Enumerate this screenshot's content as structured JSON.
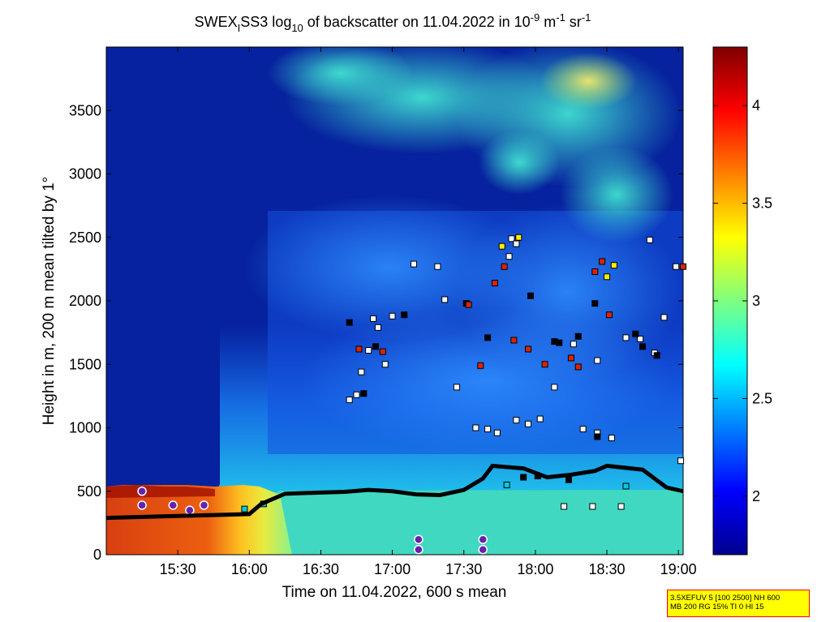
{
  "chart_data": {
    "type": "heatmap",
    "title": {
      "pre": "SWEX",
      "sub1": "I",
      "mid": "SS3 log",
      "sub2": "10",
      "post": " of backscatter on 11.04.2022 in 10",
      "sup1": "-9",
      "post2": " m",
      "sup2": "-1",
      "post3": " sr",
      "sup3": "-1"
    },
    "xlabel": "Time on 11.04.2022, 600 s mean",
    "ylabel": "Height in m, 200 m mean tilted by 1°",
    "x_tick_labels": [
      "15:30",
      "16:00",
      "16:30",
      "17:00",
      "17:30",
      "18:00",
      "18:30",
      "19:00"
    ],
    "y_tick_labels": [
      "0",
      "500",
      "1000",
      "1500",
      "2000",
      "2500",
      "3000",
      "3500"
    ],
    "y_ticks": [
      0,
      500,
      1000,
      1500,
      2000,
      2500,
      3000,
      3500
    ],
    "xlim_minutes": [
      900,
      1142
    ],
    "ylim": [
      0,
      4000
    ],
    "colorbar": {
      "range": [
        1.7,
        4.3
      ],
      "tick_labels": [
        "2",
        "2.5",
        "3",
        "3.5",
        "4"
      ],
      "ticks": [
        2,
        2.5,
        3,
        3.5,
        4
      ]
    },
    "colormap": "jet",
    "boundary_layer_line": {
      "color": "#000000",
      "points": [
        [
          900,
          290
        ],
        [
          920,
          300
        ],
        [
          940,
          310
        ],
        [
          960,
          320
        ],
        [
          965,
          400
        ],
        [
          975,
          480
        ],
        [
          990,
          490
        ],
        [
          1000,
          495
        ],
        [
          1010,
          510
        ],
        [
          1020,
          500
        ],
        [
          1030,
          475
        ],
        [
          1040,
          470
        ],
        [
          1050,
          510
        ],
        [
          1058,
          600
        ],
        [
          1062,
          700
        ],
        [
          1075,
          680
        ],
        [
          1085,
          610
        ],
        [
          1095,
          630
        ],
        [
          1105,
          660
        ],
        [
          1110,
          700
        ],
        [
          1125,
          670
        ],
        [
          1135,
          530
        ],
        [
          1142,
          500
        ]
      ]
    },
    "cloud_marker_groups": [
      {
        "color": "#ffffff",
        "points": [
          [
            1002,
            1220
          ],
          [
            1005,
            1260
          ],
          [
            1007,
            1440
          ],
          [
            1010,
            1610
          ],
          [
            1017,
            1500
          ],
          [
            1012,
            1860
          ],
          [
            1014,
            1790
          ],
          [
            1020,
            1880
          ],
          [
            1029,
            2290
          ],
          [
            1039,
            2270
          ],
          [
            1042,
            2010
          ],
          [
            1047,
            1320
          ],
          [
            1055,
            1000
          ],
          [
            1060,
            990
          ],
          [
            1064,
            960
          ],
          [
            1072,
            1060
          ],
          [
            1077,
            1030
          ],
          [
            1082,
            1070
          ],
          [
            1088,
            1320
          ],
          [
            1096,
            1660
          ],
          [
            1100,
            990
          ],
          [
            1106,
            960
          ],
          [
            1112,
            920
          ],
          [
            1118,
            1710
          ],
          [
            1124,
            1700
          ],
          [
            1130,
            1590
          ],
          [
            1134,
            1870
          ],
          [
            1139,
            2270
          ],
          [
            1141,
            740
          ],
          [
            1092,
            380
          ],
          [
            1104,
            380
          ],
          [
            1116,
            380
          ],
          [
            1106,
            1530
          ],
          [
            1069,
            2350
          ],
          [
            1070,
            2490
          ],
          [
            1072,
            2450
          ],
          [
            1128,
            2480
          ]
        ]
      },
      {
        "color": "#000000",
        "points": [
          [
            1002,
            1830
          ],
          [
            1008,
            1270
          ],
          [
            1013,
            1640
          ],
          [
            1025,
            1890
          ],
          [
            1051,
            1980
          ],
          [
            1060,
            1710
          ],
          [
            1078,
            2040
          ],
          [
            1088,
            1680
          ],
          [
            1090,
            1670
          ],
          [
            1098,
            1720
          ],
          [
            1105,
            1980
          ],
          [
            1122,
            1740
          ],
          [
            1125,
            1640
          ],
          [
            1131,
            1570
          ],
          [
            1106,
            930
          ],
          [
            1075,
            610
          ],
          [
            1081,
            620
          ],
          [
            1094,
            590
          ]
        ]
      },
      {
        "color": "#dd2200",
        "points": [
          [
            1006,
            1620
          ],
          [
            1016,
            1600
          ],
          [
            1052,
            1970
          ],
          [
            1057,
            1490
          ],
          [
            1063,
            2140
          ],
          [
            1067,
            2270
          ],
          [
            1071,
            1690
          ],
          [
            1077,
            1620
          ],
          [
            1084,
            1500
          ],
          [
            1095,
            1550
          ],
          [
            1098,
            1480
          ],
          [
            1105,
            2230
          ],
          [
            1108,
            2310
          ],
          [
            1111,
            1890
          ],
          [
            1142,
            2270
          ]
        ]
      },
      {
        "color": "#ffee00",
        "points": [
          [
            1066,
            2430
          ],
          [
            1073,
            2500
          ],
          [
            1110,
            2190
          ],
          [
            1113,
            2280
          ]
        ]
      },
      {
        "color": "#00ccdd",
        "points": [
          [
            966,
            400
          ],
          [
            958,
            360
          ],
          [
            1068,
            550
          ],
          [
            1118,
            540
          ]
        ]
      },
      {
        "color": "#6622aa",
        "points": [
          [
            915,
            500
          ],
          [
            915,
            390
          ],
          [
            928,
            390
          ],
          [
            941,
            390
          ],
          [
            935,
            350
          ],
          [
            1058,
            120
          ],
          [
            1058,
            40
          ],
          [
            1031,
            120
          ],
          [
            1031,
            40
          ]
        ]
      }
    ]
  },
  "info_box": {
    "line1": "3.5XEFUV 5 [100 2500] NH 600",
    "line2": "MB 200 RG 15% TI 0 HI 15"
  }
}
